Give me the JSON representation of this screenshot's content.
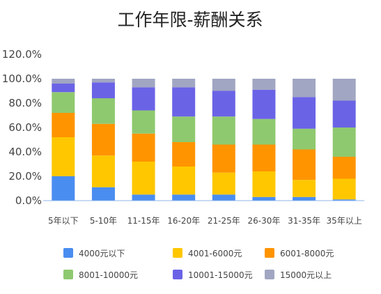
{
  "chart_data": {
    "type": "bar",
    "stacked": true,
    "title": "工作年限-薪酬关系",
    "xlabel": "",
    "ylabel": "",
    "ylim": [
      0,
      120
    ],
    "y_ticks": [
      "0.0%",
      "20.0%",
      "40.0%",
      "60.0%",
      "80.0%",
      "100.0%",
      "120.0%"
    ],
    "grid": false,
    "legend_position": "bottom",
    "categories": [
      "5年以下",
      "5-10年",
      "11-15年",
      "16-20年",
      "21-25年",
      "26-30年",
      "31-35年",
      "35年以上"
    ],
    "series": [
      {
        "name": "4000元以下",
        "color": "#4a8df0",
        "values": [
          20,
          11,
          5,
          5,
          5,
          3,
          3,
          1
        ]
      },
      {
        "name": "4001-6000元",
        "color": "#ffc700",
        "values": [
          32,
          26,
          27,
          23,
          18,
          21,
          14,
          17
        ]
      },
      {
        "name": "6001-8000元",
        "color": "#ff9400",
        "values": [
          20,
          26,
          23,
          20,
          23,
          22,
          25,
          18
        ]
      },
      {
        "name": "8001-10000元",
        "color": "#8fc96f",
        "values": [
          17,
          21,
          19,
          21,
          23,
          21,
          17,
          24
        ]
      },
      {
        "name": "10001-15000元",
        "color": "#6b63e6",
        "values": [
          7,
          13,
          19,
          24,
          21,
          24,
          26,
          22
        ]
      },
      {
        "name": "15000元以上",
        "color": "#a1a6c2",
        "values": [
          4,
          3,
          7,
          7,
          10,
          9,
          15,
          18
        ]
      }
    ]
  }
}
